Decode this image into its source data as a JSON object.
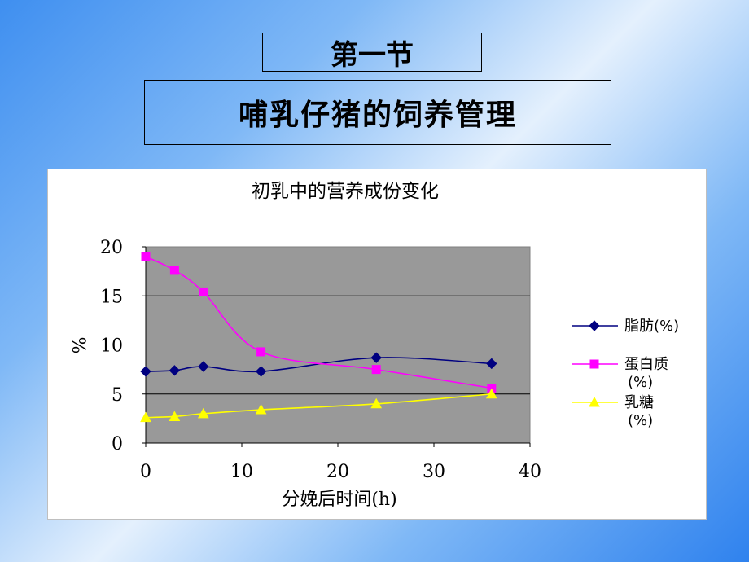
{
  "slide": {
    "section": "第一节",
    "title": "哺乳仔猪的饲养管理"
  },
  "colors": {
    "plot_background": "#999999",
    "fat": "#000080",
    "protein": "#FF00FF",
    "lactose": "#FFFF00"
  },
  "chart_data": {
    "type": "line",
    "title": "初乳中的营养成份变化",
    "xlabel": "分娩后时间(h)",
    "ylabel": "%",
    "xlim": [
      0,
      40
    ],
    "ylim": [
      0,
      20
    ],
    "xticks": [
      "0",
      "10",
      "20",
      "30",
      "40"
    ],
    "yticks": [
      "0",
      "5",
      "10",
      "15",
      "20"
    ],
    "grid": true,
    "legend_position": "right",
    "series": [
      {
        "name_line1": "脂肪(%)",
        "name_line2": "",
        "marker": "diamond",
        "color": "#000080",
        "x": [
          0,
          3,
          6,
          12,
          24,
          36
        ],
        "y": [
          7.3,
          7.4,
          7.8,
          7.3,
          8.7,
          8.1
        ]
      },
      {
        "name_line1": "蛋白质",
        "name_line2": "(%)",
        "marker": "square",
        "color": "#FF00FF",
        "x": [
          0,
          3,
          6,
          12,
          24,
          36
        ],
        "y": [
          19.0,
          17.6,
          15.4,
          9.3,
          7.5,
          5.6
        ]
      },
      {
        "name_line1": "乳糖",
        "name_line2": "(%)",
        "marker": "triangle",
        "color": "#FFFF00",
        "x": [
          0,
          3,
          6,
          12,
          24,
          36
        ],
        "y": [
          2.6,
          2.7,
          3.0,
          3.4,
          4.0,
          5.0
        ]
      }
    ]
  }
}
